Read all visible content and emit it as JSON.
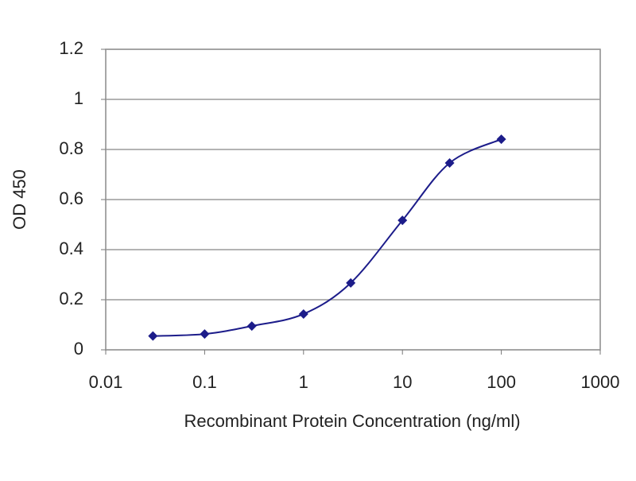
{
  "chart_data": {
    "type": "line",
    "x_label": "Recombinant Protein Concentration (ng/ml)",
    "y_label": "OD 450",
    "x": [
      0.03,
      0.1,
      0.3,
      1,
      3,
      10,
      30,
      100
    ],
    "values": [
      0.055,
      0.063,
      0.095,
      0.143,
      0.267,
      0.517,
      0.746,
      0.841
    ],
    "color": "#1c1c8a",
    "xlog": true,
    "xlim": [
      0.01,
      1000
    ],
    "xticks": [
      0.01,
      0.1,
      1,
      10,
      100,
      1000
    ],
    "ylim": [
      0,
      1.2
    ],
    "yticks": [
      0,
      0.2,
      0.4,
      0.6,
      0.8,
      1,
      1.2
    ],
    "grid": true
  }
}
